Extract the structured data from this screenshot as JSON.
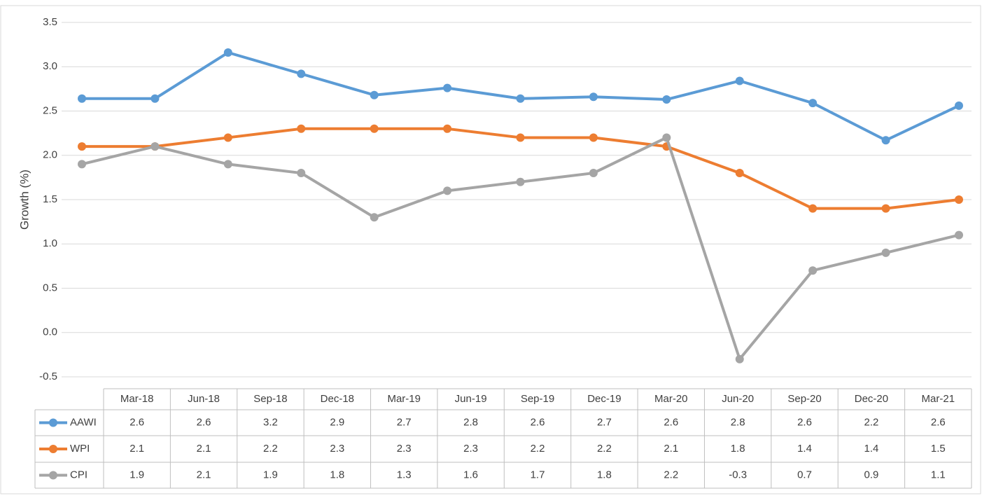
{
  "chart_data": {
    "type": "line",
    "y_label": "Growth (%)",
    "categories": [
      "Mar-18",
      "Jun-18",
      "Sep-18",
      "Dec-18",
      "Mar-19",
      "Jun-19",
      "Sep-19",
      "Dec-19",
      "Mar-20",
      "Jun-20",
      "Sep-20",
      "Dec-20",
      "Mar-21"
    ],
    "series": [
      {
        "name": "AAWI",
        "color": "#5b9bd5",
        "values": [
          2.64,
          2.64,
          3.16,
          2.92,
          2.68,
          2.76,
          2.64,
          2.66,
          2.63,
          2.84,
          2.59,
          2.17,
          2.56
        ],
        "value_labels": [
          "2.6",
          "2.6",
          "3.2",
          "2.9",
          "2.7",
          "2.8",
          "2.6",
          "2.7",
          "2.6",
          "2.8",
          "2.6",
          "2.2",
          "2.6"
        ]
      },
      {
        "name": "WPI",
        "color": "#ed7d31",
        "values": [
          2.1,
          2.1,
          2.2,
          2.3,
          2.3,
          2.3,
          2.2,
          2.2,
          2.1,
          1.8,
          1.4,
          1.4,
          1.5
        ]
      },
      {
        "name": "CPI",
        "color": "#a5a5a5",
        "values": [
          1.9,
          2.1,
          1.9,
          1.8,
          1.3,
          1.6,
          1.7,
          1.8,
          2.2,
          -0.3,
          0.7,
          0.9,
          1.1
        ]
      }
    ],
    "ylim": [
      -0.5,
      3.5
    ],
    "yticks": [
      -0.5,
      {
        "value": 0,
        "label": "0.0"
      },
      0.5,
      {
        "value": 1,
        "label": "1.0"
      },
      1.5,
      {
        "value": 2,
        "label": "2.0"
      },
      2.5,
      {
        "value": 3,
        "label": "3.0"
      },
      3.5
    ],
    "grid": true
  }
}
